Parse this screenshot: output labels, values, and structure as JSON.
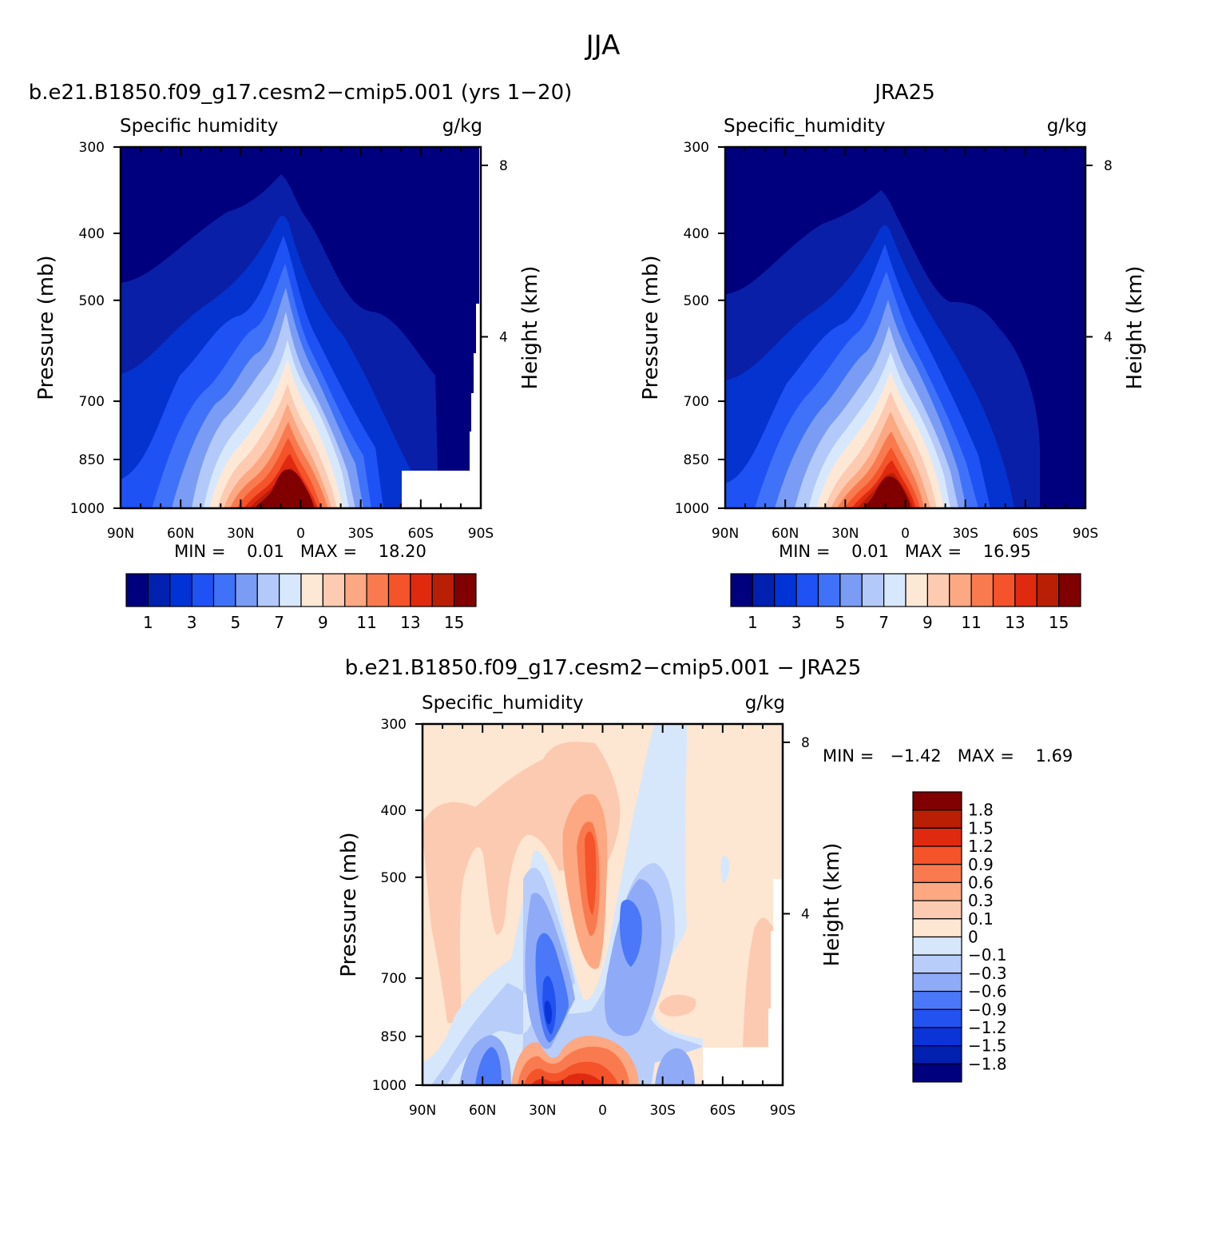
{
  "figure_title": "JJA",
  "chart_data": [
    {
      "type": "heatmap",
      "id": "model",
      "case_title": "b.e21.B1850.f09_g17.cesm2-cmip5.001 (yrs 1-20)",
      "left_label": "Specific humidity",
      "right_label": "g/kg",
      "ylabel": "Pressure (mb)",
      "ylabel_right": "Height (km)",
      "x_ticks": [
        "90N",
        "60N",
        "30N",
        "0",
        "30S",
        "60S",
        "90S"
      ],
      "y_ticks": [
        "300",
        "400",
        "500",
        "700",
        "850",
        "1000"
      ],
      "height_ticks": [
        "8",
        "4"
      ],
      "ylim": [
        1000,
        300
      ],
      "xlim": [
        90,
        -90
      ],
      "stats": "MIN =    0.01   MAX =    18.20",
      "min": 0.01,
      "max": 18.2,
      "colorbar": {
        "colors": [
          "#00007f",
          "#0020b0",
          "#0033d6",
          "#1f52f5",
          "#3f72f8",
          "#7b9cf5",
          "#b3c9fa",
          "#d8e8fc",
          "#fde8d6",
          "#fdcbb2",
          "#fca882",
          "#fa7a4f",
          "#f5532a",
          "#e02a10",
          "#b81f05",
          "#800000"
        ],
        "labels": [
          "1",
          "3",
          "5",
          "7",
          "9",
          "11",
          "13",
          "15"
        ]
      }
    },
    {
      "type": "heatmap",
      "id": "obs",
      "case_title": "JRA25",
      "left_label": "Specific_humidity",
      "right_label": "g/kg",
      "ylabel": "Pressure (mb)",
      "ylabel_right": "Height (km)",
      "x_ticks": [
        "90N",
        "60N",
        "30N",
        "0",
        "30S",
        "60S",
        "90S"
      ],
      "y_ticks": [
        "300",
        "400",
        "500",
        "700",
        "850",
        "1000"
      ],
      "height_ticks": [
        "8",
        "4"
      ],
      "ylim": [
        1000,
        300
      ],
      "xlim": [
        90,
        -90
      ],
      "stats": "MIN =    0.01   MAX =    16.95",
      "min": 0.01,
      "max": 16.95,
      "colorbar": {
        "colors": [
          "#00007f",
          "#0020b0",
          "#0033d6",
          "#1f52f5",
          "#3f72f8",
          "#7b9cf5",
          "#b3c9fa",
          "#d8e8fc",
          "#fde8d6",
          "#fdcbb2",
          "#fca882",
          "#fa7a4f",
          "#f5532a",
          "#e02a10",
          "#b81f05",
          "#800000"
        ],
        "labels": [
          "1",
          "3",
          "5",
          "7",
          "9",
          "11",
          "13",
          "15"
        ]
      }
    },
    {
      "type": "heatmap",
      "id": "diff",
      "case_title": "b.e21.B1850.f09_g17.cesm2-cmip5.001 - JRA25",
      "left_label": "Specific_humidity",
      "right_label": "g/kg",
      "ylabel": "Pressure (mb)",
      "ylabel_right": "Height (km)",
      "x_ticks": [
        "90N",
        "60N",
        "30N",
        "0",
        "30S",
        "60S",
        "90S"
      ],
      "y_ticks": [
        "300",
        "400",
        "500",
        "700",
        "850",
        "1000"
      ],
      "height_ticks": [
        "8",
        "4"
      ],
      "ylim": [
        1000,
        300
      ],
      "xlim": [
        90,
        -90
      ],
      "stats": "MIN =   -1.42   MAX =    1.69",
      "min": -1.42,
      "max": 1.69,
      "colorbar": {
        "colors": [
          "#00007f",
          "#0020b0",
          "#0a33d8",
          "#2252f0",
          "#4a78f8",
          "#8faaf7",
          "#b8cdf9",
          "#d7e7fb",
          "#fde6d2",
          "#fccab0",
          "#fca882",
          "#fa7a4f",
          "#f5532a",
          "#e02a10",
          "#b81f05",
          "#800000"
        ],
        "labels": [
          "1.8",
          "1.5",
          "1.2",
          "0.9",
          "0.6",
          "0.3",
          "0.1",
          "0",
          "-0.1",
          "-0.3",
          "-0.6",
          "-0.9",
          "-1.2",
          "-1.5",
          "-1.8"
        ]
      }
    }
  ]
}
